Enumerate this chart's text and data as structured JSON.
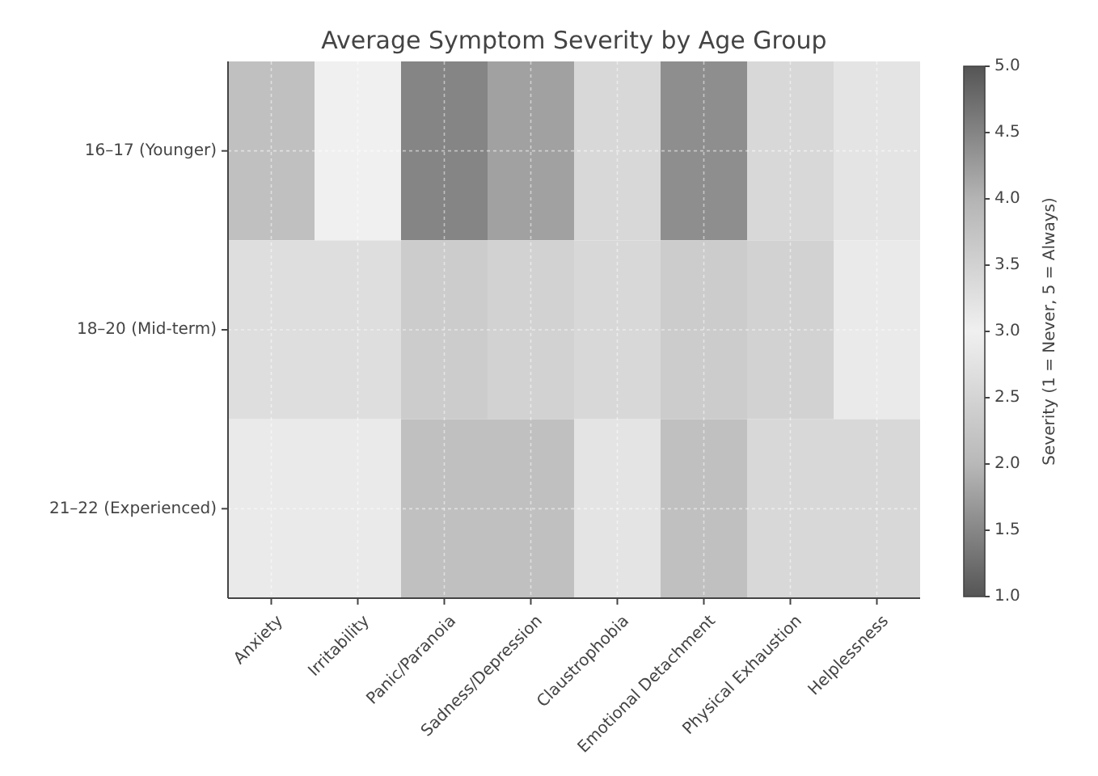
{
  "chart_data": {
    "type": "heatmap",
    "title": "Average Symptom Severity by Age Group",
    "clabel": "Severity (1 = Never, 5 = Always)",
    "categories": [
      "Anxiety",
      "Irritability",
      "Panic/Paranoia",
      "Sadness/Depression",
      "Claustrophobia",
      "Emotional Detachment",
      "Physical Exhaustion",
      "Helplessness"
    ],
    "y_categories": [
      "16–17 (Younger)",
      "18–20 (Mid-term)",
      "21–22 (Experienced)"
    ],
    "cells": [
      [
        3.8,
        3.0,
        4.5,
        4.2,
        3.4,
        4.4,
        3.4,
        3.2
      ],
      [
        3.3,
        3.3,
        3.6,
        3.5,
        3.4,
        3.6,
        3.5,
        3.1
      ],
      [
        3.1,
        3.1,
        3.8,
        3.8,
        3.2,
        3.8,
        3.4,
        3.4
      ]
    ],
    "clim": [
      1.0,
      5.0
    ],
    "cticks": [
      {
        "value": 1,
        "label": "1.0"
      },
      {
        "value": 1.5,
        "label": "1.5"
      },
      {
        "value": 2,
        "label": "2.0"
      },
      {
        "value": 2.5,
        "label": "2.5"
      },
      {
        "value": 3,
        "label": "3.0"
      },
      {
        "value": 3.5,
        "label": "3.5"
      },
      {
        "value": 4,
        "label": "4.0"
      },
      {
        "value": 4.5,
        "label": "4.5"
      },
      {
        "value": 5,
        "label": "5.0"
      }
    ],
    "grid": true
  }
}
